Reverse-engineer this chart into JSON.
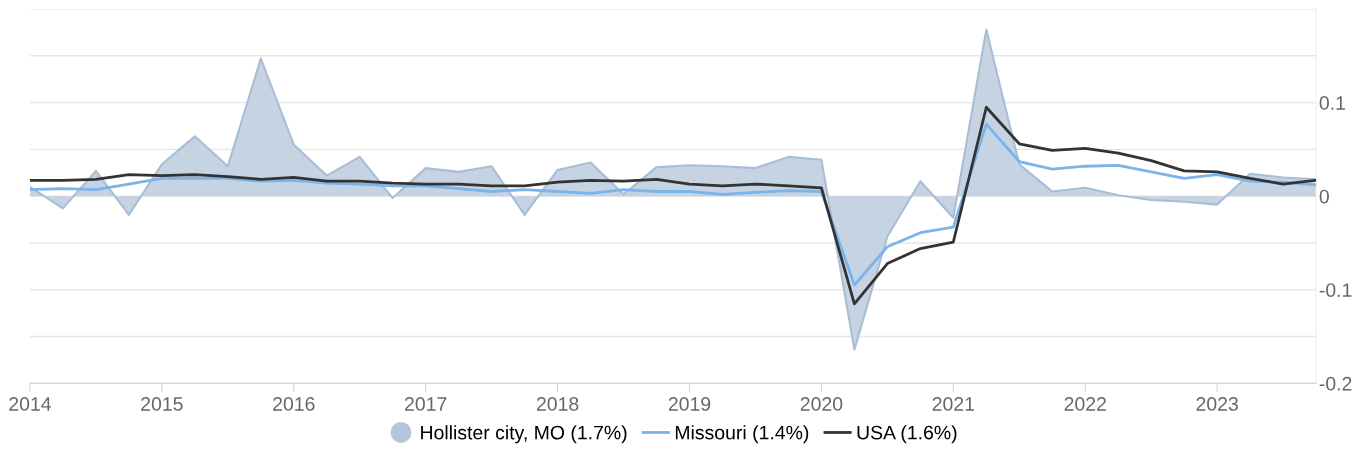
{
  "chart_data": {
    "type": "area",
    "x": [
      2014.0,
      2014.25,
      2014.5,
      2014.75,
      2015.0,
      2015.25,
      2015.5,
      2015.75,
      2016.0,
      2016.25,
      2016.5,
      2016.75,
      2017.0,
      2017.25,
      2017.5,
      2017.75,
      2018.0,
      2018.25,
      2018.5,
      2018.75,
      2019.0,
      2019.25,
      2019.5,
      2019.75,
      2020.0,
      2020.25,
      2020.5,
      2020.75,
      2021.0,
      2021.25,
      2021.5,
      2021.75,
      2022.0,
      2022.25,
      2022.5,
      2022.75,
      2023.0,
      2023.25,
      2023.5,
      2023.75
    ],
    "series": [
      {
        "name": "Hollister city, MO (1.7%)",
        "color": "#c5d3e3",
        "values": [
          0.01,
          -0.013,
          0.027,
          -0.02,
          0.034,
          0.064,
          0.032,
          0.147,
          0.055,
          0.022,
          0.042,
          -0.002,
          0.03,
          0.026,
          0.032,
          -0.02,
          0.028,
          0.036,
          0.002,
          0.031,
          0.033,
          0.032,
          0.03,
          0.042,
          0.039,
          -0.164,
          -0.043,
          0.016,
          -0.023,
          0.178,
          0.034,
          0.005,
          0.009,
          0.001,
          -0.004,
          -0.006,
          -0.009,
          0.024,
          0.02,
          0.018
        ]
      },
      {
        "name": "Missouri (1.4%)",
        "type": "line",
        "color": "#7ab4ea",
        "values": [
          0.007,
          0.008,
          0.007,
          0.013,
          0.019,
          0.019,
          0.019,
          0.016,
          0.017,
          0.014,
          0.013,
          0.011,
          0.011,
          0.008,
          0.005,
          0.007,
          0.005,
          0.003,
          0.007,
          0.005,
          0.005,
          0.002,
          0.004,
          0.006,
          0.005,
          -0.095,
          -0.054,
          -0.039,
          -0.033,
          0.077,
          0.037,
          0.029,
          0.032,
          0.033,
          0.026,
          0.019,
          0.023,
          0.016,
          0.015,
          0.012
        ]
      },
      {
        "name": "USA (1.6%)",
        "type": "line",
        "color": "#333333",
        "values": [
          0.017,
          0.017,
          0.018,
          0.023,
          0.022,
          0.023,
          0.021,
          0.018,
          0.02,
          0.016,
          0.016,
          0.014,
          0.013,
          0.013,
          0.011,
          0.011,
          0.015,
          0.017,
          0.016,
          0.018,
          0.013,
          0.011,
          0.013,
          0.011,
          0.009,
          -0.115,
          -0.072,
          -0.056,
          -0.049,
          0.095,
          0.056,
          0.049,
          0.051,
          0.046,
          0.038,
          0.027,
          0.026,
          0.019,
          0.013,
          0.017
        ]
      }
    ],
    "xlim": [
      2014,
      2023.75
    ],
    "xticks": [
      2014,
      2015,
      2016,
      2017,
      2018,
      2019,
      2020,
      2021,
      2022,
      2023
    ],
    "ylim": [
      -0.2,
      0.2
    ],
    "yticks": [
      {
        "value": 0.2,
        "label": null
      },
      {
        "value": 0.15,
        "label": null
      },
      0.1,
      {
        "value": 0.05,
        "label": null
      },
      0,
      {
        "value": -0.05,
        "label": null
      },
      -0.1,
      {
        "value": -0.15,
        "label": null
      },
      -0.2
    ],
    "grid": "y",
    "legend": "bottom"
  }
}
